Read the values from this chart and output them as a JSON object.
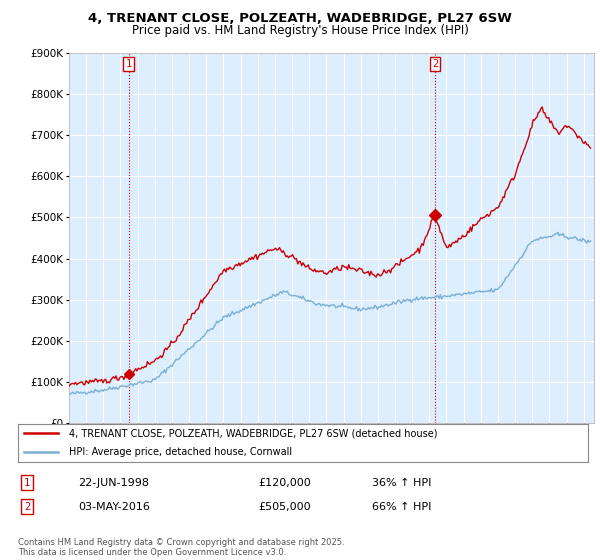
{
  "title_line1": "4, TRENANT CLOSE, POLZEATH, WADEBRIDGE, PL27 6SW",
  "title_line2": "Price paid vs. HM Land Registry's House Price Index (HPI)",
  "background_color": "#ffffff",
  "plot_background": "#ddeeff",
  "grid_color": "#ffffff",
  "line1_color": "#cc0000",
  "line2_color": "#7ab0d4",
  "legend_line1": "4, TRENANT CLOSE, POLZEATH, WADEBRIDGE, PL27 6SW (detached house)",
  "legend_line2": "HPI: Average price, detached house, Cornwall",
  "annotation1_label": "1",
  "annotation1_date": "22-JUN-1998",
  "annotation1_price": "£120,000",
  "annotation1_hpi": "36% ↑ HPI",
  "annotation2_label": "2",
  "annotation2_date": "03-MAY-2016",
  "annotation2_price": "£505,000",
  "annotation2_hpi": "66% ↑ HPI",
  "copyright_text": "Contains HM Land Registry data © Crown copyright and database right 2025.\nThis data is licensed under the Open Government Licence v3.0.",
  "ylim_max": 900000,
  "ylim_min": 0,
  "year_start": 1995,
  "year_end": 2025,
  "purchase1_year": 1998.47,
  "purchase1_price": 120000,
  "purchase2_year": 2016.33,
  "purchase2_price": 505000
}
